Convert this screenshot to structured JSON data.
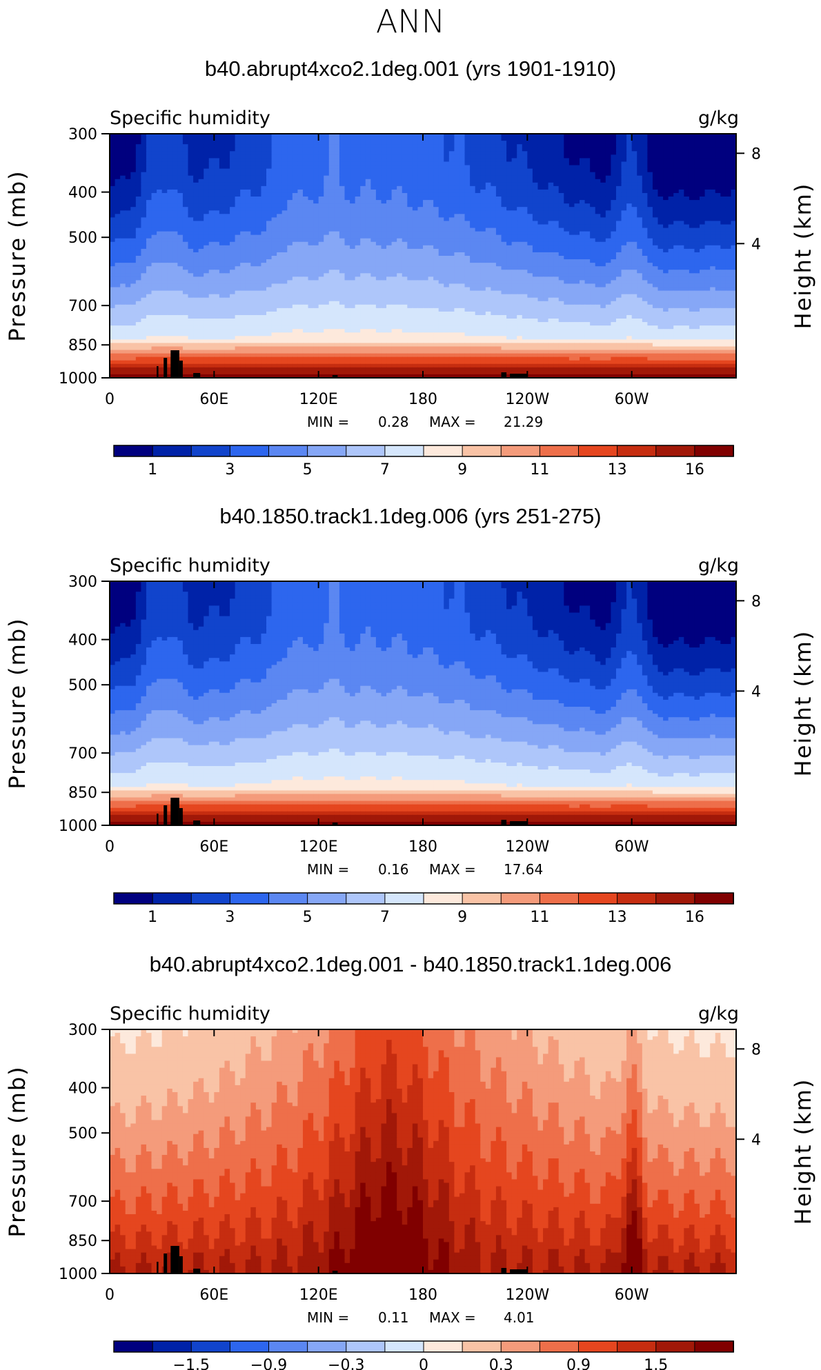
{
  "page": {
    "title": "ANN"
  },
  "colorbar": {
    "colors": [
      "#00007f",
      "#0022a8",
      "#1144cc",
      "#2d66ee",
      "#5b87f2",
      "#86a7f6",
      "#aec6fa",
      "#d5e6fc",
      "#fde9dc",
      "#f9c3a6",
      "#f49b7b",
      "#ee6f4a",
      "#e5461f",
      "#c62d10",
      "#a11808",
      "#800000"
    ],
    "abs_tick_labels": [
      "1",
      "3",
      "5",
      "7",
      "9",
      "11",
      "13",
      "16"
    ],
    "diff_tick_labels": [
      "−1.5",
      "−0.9",
      "−0.3",
      "0",
      "0.3",
      "0.9",
      "1.5"
    ]
  },
  "chart_data": [
    {
      "type": "contour",
      "title": "b40.abrupt4xco2.1deg.001 (yrs 1901-1910)",
      "variable_label": "Specific humidity",
      "units": "g/kg",
      "ylabel": "Pressure (mb)",
      "y2label": "Height (km)",
      "x_ticks": [
        "0",
        "60E",
        "120E",
        "180",
        "120W",
        "60W"
      ],
      "y_ticks": [
        "300",
        "400",
        "500",
        "700",
        "850",
        "1000"
      ],
      "y2_ticks": [
        "8",
        "4"
      ],
      "min_label": "MIN =",
      "min": "0.28",
      "max_label": "MAX =",
      "max": "21.29",
      "levels": [
        1,
        2,
        3,
        4,
        5,
        6,
        7,
        8,
        9,
        10,
        11,
        12,
        13,
        14,
        16
      ],
      "field": "absolute"
    },
    {
      "type": "contour",
      "title": "b40.1850.track1.1deg.006 (yrs 251-275)",
      "variable_label": "Specific humidity",
      "units": "g/kg",
      "ylabel": "Pressure (mb)",
      "y2label": "Height (km)",
      "x_ticks": [
        "0",
        "60E",
        "120E",
        "180",
        "120W",
        "60W"
      ],
      "y_ticks": [
        "300",
        "400",
        "500",
        "700",
        "850",
        "1000"
      ],
      "y2_ticks": [
        "8",
        "4"
      ],
      "min_label": "MIN =",
      "min": "0.16",
      "max_label": "MAX =",
      "max": "17.64",
      "levels": [
        1,
        2,
        3,
        4,
        5,
        6,
        7,
        8,
        9,
        10,
        11,
        12,
        13,
        14,
        16
      ],
      "field": "absolute"
    },
    {
      "type": "contour",
      "title": "b40.abrupt4xco2.1deg.001 - b40.1850.track1.1deg.006",
      "variable_label": "Specific humidity",
      "units": "g/kg",
      "ylabel": "Pressure (mb)",
      "y2label": "Height (km)",
      "x_ticks": [
        "0",
        "60E",
        "120E",
        "180",
        "120W",
        "60W"
      ],
      "y_ticks": [
        "300",
        "400",
        "500",
        "700",
        "850",
        "1000"
      ],
      "y2_ticks": [
        "8",
        "4"
      ],
      "min_label": "MIN =",
      "min": "0.11",
      "max_label": "MAX =",
      "max": "4.01",
      "levels": [
        -1.5,
        -1.2,
        -0.9,
        -0.6,
        -0.3,
        -0.1,
        0,
        0.1,
        0.3,
        0.6,
        0.9,
        1.2,
        1.5,
        2.0,
        3.0
      ],
      "field": "difference"
    }
  ]
}
